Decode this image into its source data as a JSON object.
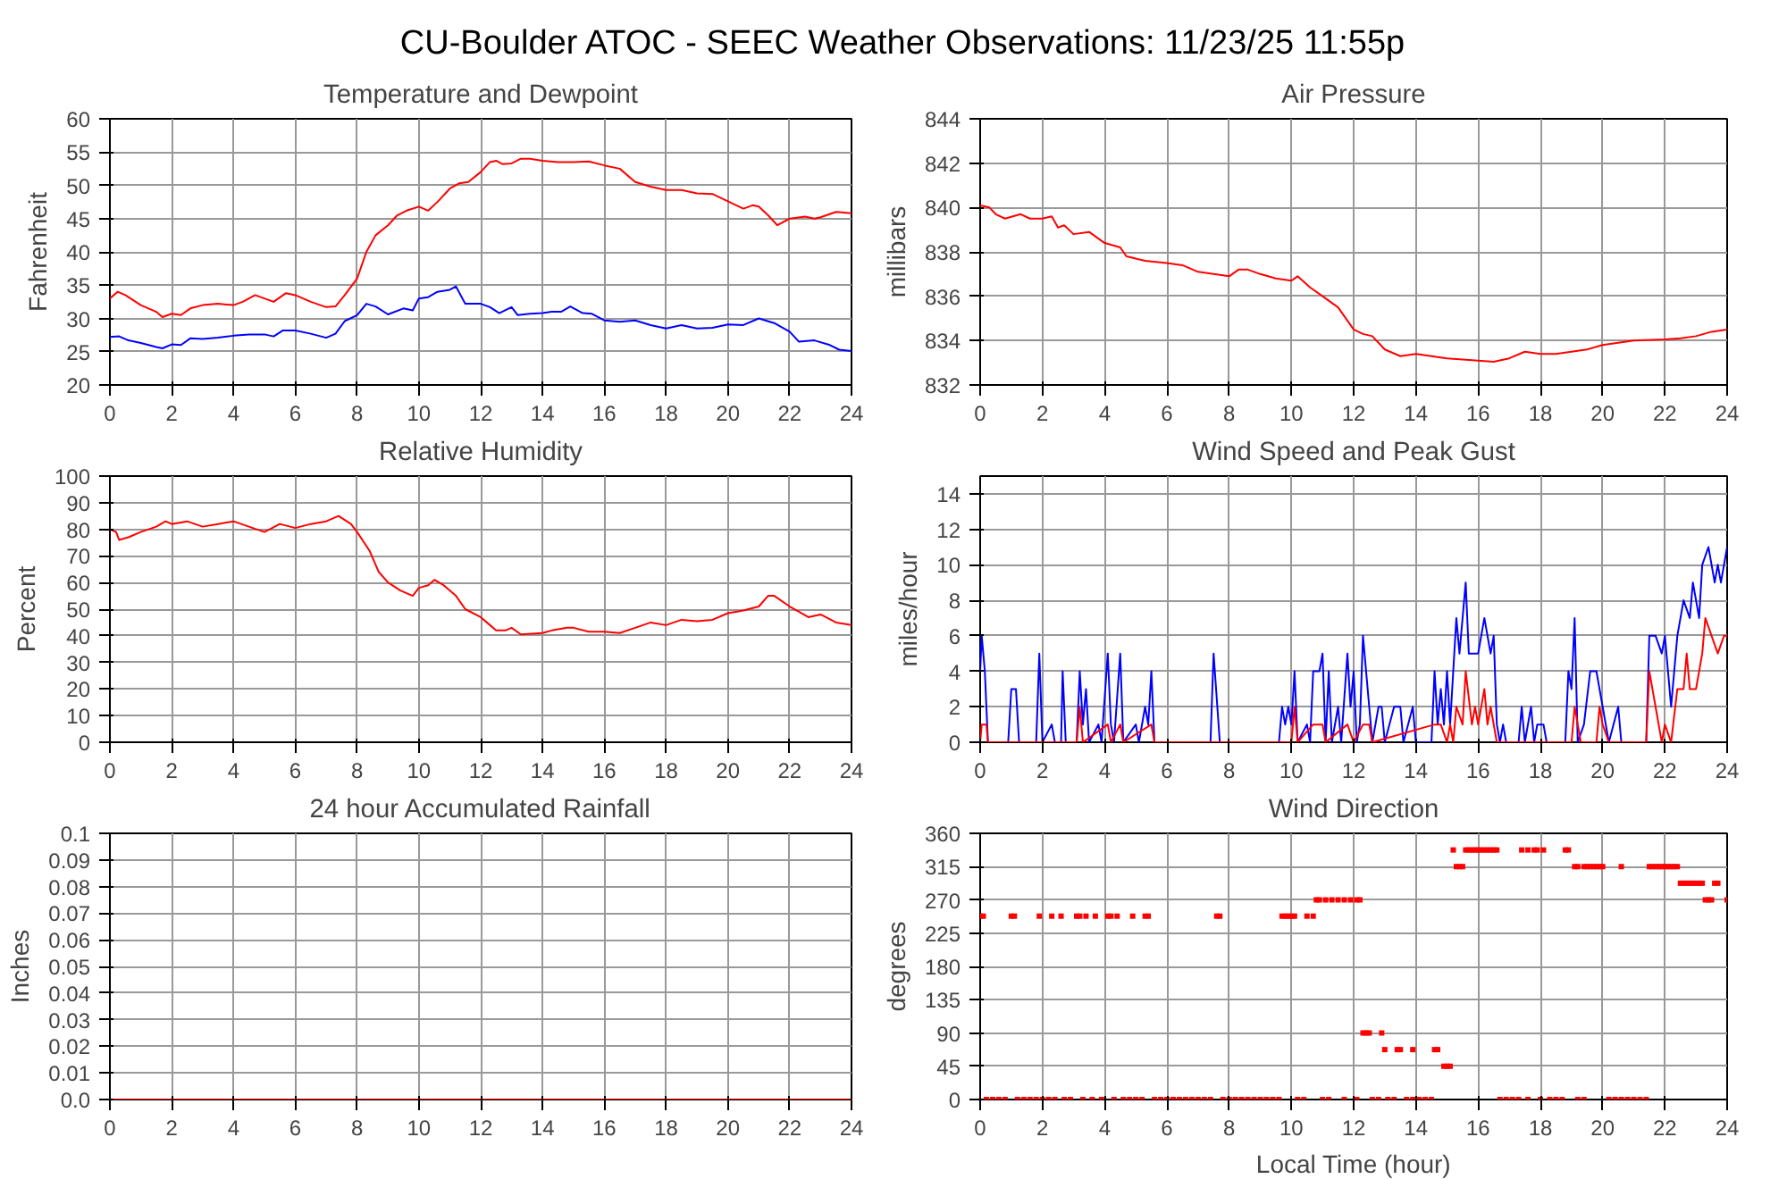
{
  "chart_data": [
    {
      "type": "line",
      "title": "Temperature and Dewpoint",
      "ylabel": "Fahrenheit",
      "annotations": [
        "CU-Boulder ATOC - SEEC Weather Observations: 11/23/25 11:55p"
      ],
      "xlim": [
        0,
        24
      ],
      "ylim": [
        20,
        60
      ],
      "xticks": [
        0,
        2,
        4,
        6,
        8,
        10,
        12,
        14,
        16,
        18,
        20,
        22,
        24
      ],
      "yticks": [
        20,
        25,
        30,
        35,
        40,
        45,
        50,
        55,
        60
      ],
      "grid": true,
      "line_style": "solid",
      "series": [
        {
          "color": "#ff0000",
          "x": [
            0,
            0.25,
            0.5,
            1,
            1.5,
            1.7,
            2,
            2.3,
            2.6,
            3,
            3.5,
            4,
            4.3,
            4.7,
            5,
            5.3,
            5.7,
            6,
            6.5,
            7,
            7.3,
            7.6,
            8,
            8.3,
            8.6,
            9,
            9.3,
            9.6,
            10,
            10.3,
            10.6,
            11,
            11.3,
            11.6,
            12,
            12.3,
            12.5,
            12.7,
            13,
            13.3,
            13.6,
            14,
            14.5,
            15,
            15.5,
            16,
            16.5,
            17,
            17.5,
            18,
            18.5,
            19,
            19.5,
            20,
            20.5,
            20.8,
            21,
            21.3,
            21.6,
            22,
            22.5,
            22.8,
            23,
            23.5,
            24
          ],
          "values": [
            33,
            34,
            33.5,
            32,
            31,
            30.2,
            30.7,
            30.5,
            31.5,
            32,
            32.2,
            32,
            32.5,
            33.5,
            33,
            32.5,
            33.8,
            33.5,
            32.5,
            31.7,
            31.8,
            33.5,
            36,
            40,
            42.5,
            44,
            45.5,
            46.2,
            46.8,
            46.2,
            47.5,
            49.5,
            50.3,
            50.5,
            52,
            53.5,
            53.7,
            53.2,
            53.3,
            54,
            54,
            53.7,
            53.5,
            53.5,
            53.6,
            53,
            52.5,
            50.5,
            49.8,
            49.3,
            49.3,
            48.8,
            48.7,
            47.6,
            46.5,
            47,
            46.8,
            45.5,
            44,
            45,
            45.3,
            45,
            45.2,
            46,
            45.8
          ]
        },
        {
          "color": "#0000ff",
          "x": [
            0,
            0.3,
            0.6,
            1,
            1.5,
            1.7,
            2,
            2.3,
            2.6,
            3,
            3.5,
            4,
            4.5,
            5,
            5.3,
            5.6,
            6,
            6.5,
            7,
            7.3,
            7.6,
            8,
            8.3,
            8.6,
            9,
            9.5,
            9.8,
            10,
            10.3,
            10.6,
            11,
            11.2,
            11.5,
            12,
            12.3,
            12.6,
            13,
            13.2,
            13.6,
            14,
            14.3,
            14.6,
            14.9,
            15.3,
            15.6,
            16,
            16.5,
            17,
            17.5,
            18,
            18.5,
            19,
            19.5,
            20,
            20.5,
            21,
            21.5,
            22,
            22.3,
            22.8,
            23.3,
            23.6,
            24
          ],
          "values": [
            27.2,
            27.3,
            26.7,
            26.3,
            25.7,
            25.5,
            26.1,
            26,
            27,
            26.9,
            27.1,
            27.4,
            27.6,
            27.6,
            27.3,
            28.2,
            28.2,
            27.7,
            27.1,
            27.7,
            29.6,
            30.5,
            32.2,
            31.8,
            30.6,
            31.5,
            31.2,
            33,
            33.2,
            34,
            34.3,
            34.8,
            32.2,
            32.2,
            31.7,
            30.8,
            31.7,
            30.5,
            30.7,
            30.8,
            31,
            31,
            31.8,
            30.8,
            30.7,
            29.7,
            29.5,
            29.7,
            29,
            28.5,
            29,
            28.5,
            28.6,
            29.1,
            29,
            30,
            29.3,
            28,
            26.5,
            26.7,
            26,
            25.3,
            25.1
          ]
        }
      ]
    },
    {
      "type": "line",
      "title": "Air Pressure",
      "ylabel": "millibars",
      "xlim": [
        0,
        24
      ],
      "ylim": [
        832,
        844
      ],
      "xticks": [
        0,
        2,
        4,
        6,
        8,
        10,
        12,
        14,
        16,
        18,
        20,
        22,
        24
      ],
      "yticks": [
        832,
        834,
        836,
        838,
        840,
        842,
        844
      ],
      "grid": true,
      "line_style": "solid",
      "series": [
        {
          "color": "#ff0000",
          "x": [
            0,
            0.3,
            0.5,
            0.8,
            1.3,
            1.6,
            2,
            2.3,
            2.5,
            2.7,
            3,
            3.5,
            4,
            4.5,
            4.7,
            5.3,
            6,
            6.5,
            7,
            7.5,
            8,
            8.3,
            8.6,
            9,
            9.5,
            10,
            10.2,
            10.6,
            11,
            11.5,
            12,
            12.3,
            12.6,
            13,
            13.5,
            14,
            14.5,
            15,
            15.5,
            16,
            16.5,
            17,
            17.5,
            18,
            18.5,
            19,
            19.5,
            20,
            20.5,
            21,
            22,
            22.5,
            23,
            23.5,
            24
          ],
          "values": [
            840.1,
            840,
            839.7,
            839.5,
            839.7,
            839.5,
            839.5,
            839.6,
            839.1,
            839.2,
            838.8,
            838.9,
            838.4,
            838.2,
            837.8,
            837.6,
            837.5,
            837.4,
            837.1,
            837,
            836.9,
            837.2,
            837.2,
            837,
            836.8,
            836.7,
            836.9,
            836.4,
            836,
            835.5,
            834.5,
            834.3,
            834.2,
            833.6,
            833.3,
            833.4,
            833.3,
            833.2,
            833.15,
            833.1,
            833.05,
            833.2,
            833.5,
            833.4,
            833.4,
            833.5,
            833.6,
            833.8,
            833.9,
            834,
            834.05,
            834.1,
            834.2,
            834.4,
            834.5
          ]
        }
      ]
    },
    {
      "type": "line",
      "title": "Relative Humidity",
      "ylabel": "Percent",
      "xlim": [
        0,
        24
      ],
      "ylim": [
        0,
        100
      ],
      "xticks": [
        0,
        2,
        4,
        6,
        8,
        10,
        12,
        14,
        16,
        18,
        20,
        22,
        24
      ],
      "yticks": [
        0,
        10,
        20,
        30,
        40,
        50,
        60,
        70,
        80,
        90,
        100
      ],
      "grid": true,
      "line_style": "solid",
      "series": [
        {
          "color": "#ff0000",
          "x": [
            0,
            0.2,
            0.3,
            0.6,
            1,
            1.5,
            1.8,
            2,
            2.5,
            3,
            3.5,
            4,
            4.5,
            5,
            5.5,
            6,
            6.5,
            7,
            7.4,
            7.8,
            8,
            8.4,
            8.7,
            9,
            9.4,
            9.8,
            10,
            10.3,
            10.5,
            10.8,
            11.2,
            11.5,
            12,
            12.3,
            12.5,
            12.8,
            13,
            13.3,
            14,
            14.3,
            14.8,
            15,
            15.5,
            16,
            16.5,
            17,
            17.5,
            18,
            18.5,
            19,
            19.5,
            20,
            20.5,
            21,
            21.3,
            21.5,
            22,
            22.3,
            22.6,
            23,
            23.5,
            24
          ],
          "values": [
            80,
            79,
            76,
            77,
            79,
            81,
            83,
            82,
            83,
            81,
            82,
            83,
            81,
            79,
            82,
            80.5,
            82,
            83,
            85,
            82,
            79,
            72,
            64,
            60,
            57,
            55,
            58,
            59,
            61,
            59,
            55,
            50,
            47,
            44,
            42,
            42,
            43,
            40.5,
            41,
            42,
            43,
            43,
            41.5,
            41.5,
            41,
            43,
            45,
            44,
            46,
            45.5,
            46,
            48.5,
            49.5,
            51,
            55,
            55,
            51,
            49,
            47,
            48,
            45,
            44
          ]
        }
      ]
    },
    {
      "type": "line",
      "title": "Wind Speed and Peak Gust",
      "ylabel": "miles/hour",
      "xlim": [
        0,
        24
      ],
      "ylim": [
        0,
        15
      ],
      "xticks": [
        0,
        2,
        4,
        6,
        8,
        10,
        12,
        14,
        16,
        18,
        20,
        22,
        24
      ],
      "yticks": [
        0,
        2,
        4,
        6,
        8,
        10,
        12,
        14
      ],
      "grid": true,
      "line_style": "solid",
      "series": [
        {
          "color": "#0000ff",
          "x": [
            0,
            0.05,
            0.15,
            0.25,
            0.9,
            1,
            1.15,
            1.25,
            1.8,
            1.9,
            2,
            2.3,
            2.4,
            2.6,
            2.65,
            2.75,
            3.1,
            3.2,
            3.3,
            3.4,
            3.5,
            3.8,
            3.9,
            4.1,
            4.2,
            4.3,
            4.5,
            4.6,
            5,
            5.1,
            5.3,
            5.4,
            5.5,
            5.6,
            7.4,
            7.5,
            7.7,
            9.6,
            9.7,
            9.8,
            9.9,
            10,
            10.1,
            10.2,
            10.5,
            10.6,
            10.7,
            10.9,
            11,
            11.1,
            11.2,
            11.3,
            11.5,
            11.6,
            11.8,
            11.9,
            12,
            12.1,
            12.2,
            12.3,
            12.5,
            12.6,
            12.8,
            12.9,
            13,
            13.3,
            13.5,
            13.6,
            13.9,
            14,
            14.5,
            14.6,
            14.7,
            14.8,
            14.9,
            15,
            15.1,
            15.3,
            15.4,
            15.6,
            15.7,
            15.9,
            16,
            16.2,
            16.4,
            16.5,
            16.6,
            16.7,
            16.8,
            16.9,
            17.3,
            17.4,
            17.5,
            17.7,
            17.8,
            17.9,
            18.1,
            18.2,
            18.8,
            18.9,
            19,
            19.1,
            19.2,
            19.4,
            19.6,
            19.8,
            20,
            20.2,
            20.5,
            20.6,
            21.4,
            21.5,
            21.7,
            21.9,
            22,
            22.2,
            22.4,
            22.6,
            22.8,
            22.9,
            23.1,
            23.2,
            23.4,
            23.5,
            23.6,
            23.7,
            23.8,
            24
          ],
          "values": [
            4,
            6,
            4,
            0,
            0,
            3,
            3,
            0,
            0,
            5,
            0,
            1,
            0,
            0,
            4,
            0,
            0,
            4,
            1,
            3,
            0,
            1,
            0,
            5,
            1,
            0,
            5,
            0,
            1,
            0,
            2,
            1,
            4,
            0,
            0,
            5,
            0,
            0,
            2,
            1,
            2,
            1,
            4,
            0,
            1,
            0,
            4,
            4,
            5,
            0,
            4,
            0,
            2,
            0,
            5,
            2,
            4,
            0,
            1,
            6,
            2,
            0,
            2,
            2,
            0,
            2,
            2,
            0,
            2,
            0,
            0,
            4,
            1,
            3,
            1,
            4,
            1,
            7,
            5,
            9,
            5,
            5,
            5,
            7,
            5,
            6,
            1,
            0,
            1,
            0,
            0,
            2,
            0,
            2,
            0,
            1,
            1,
            0,
            0,
            4,
            3,
            7,
            0,
            1,
            4,
            4,
            2,
            0,
            2,
            0,
            0,
            6,
            6,
            5,
            6,
            2,
            6,
            8,
            7,
            9,
            7,
            10,
            11,
            10,
            9,
            10,
            9,
            11
          ]
        },
        {
          "color": "#ff0000",
          "x": [
            0,
            0.05,
            0.2,
            0.25,
            3.1,
            3.2,
            3.3,
            4.1,
            4.2,
            4.5,
            4.6,
            5.5,
            5.6,
            10,
            10.1,
            10.2,
            10.7,
            11,
            11.1,
            11.8,
            12,
            12.3,
            12.5,
            12.6,
            14.6,
            14.8,
            15,
            15.1,
            15.2,
            15.3,
            15.5,
            15.6,
            15.8,
            15.9,
            16,
            16.2,
            16.3,
            16.4,
            16.6,
            19,
            19.1,
            19.3,
            19.8,
            19.9,
            20,
            20.2,
            21.4,
            21.5,
            21.7,
            21.8,
            21.9,
            22,
            22.2,
            22.4,
            22.6,
            22.7,
            22.8,
            23,
            23.2,
            23.3,
            23.5,
            23.7,
            23.9,
            24
          ],
          "values": [
            0,
            1,
            1,
            0,
            0,
            2,
            0,
            1,
            0,
            1,
            0,
            1,
            0,
            0,
            2,
            0,
            1,
            1,
            0,
            1,
            0,
            1,
            1,
            0,
            1,
            1,
            0,
            1,
            0,
            2,
            1,
            4,
            1,
            2,
            1,
            3,
            1,
            2,
            0,
            0,
            2,
            0,
            0,
            2,
            1,
            0,
            0,
            4,
            2,
            1,
            0,
            1,
            0,
            3,
            3,
            5,
            3,
            3,
            5,
            7,
            6,
            5,
            6,
            6
          ]
        }
      ]
    },
    {
      "type": "line",
      "title": "24 hour Accumulated Rainfall",
      "ylabel": "Inches",
      "xlim": [
        0,
        24
      ],
      "ylim": [
        0,
        0.1
      ],
      "xticks": [
        0,
        2,
        4,
        6,
        8,
        10,
        12,
        14,
        16,
        18,
        20,
        22,
        24
      ],
      "yticks": [
        {
          "value": 0,
          "label": "0.0"
        },
        0.01,
        0.02,
        0.03,
        0.04,
        0.05,
        0.06,
        0.07,
        0.08,
        0.09,
        0.1
      ],
      "grid": true,
      "line_style": "solid",
      "series": [
        {
          "color": "#ff0000",
          "x": [
            0,
            24
          ],
          "values": [
            0,
            0
          ]
        }
      ]
    },
    {
      "type": "scatter",
      "title": "Wind Direction",
      "xlabel": "Local Time (hour)",
      "ylabel": "degrees",
      "xlim": [
        0,
        24
      ],
      "ylim": [
        0,
        360
      ],
      "xticks": [
        0,
        2,
        4,
        6,
        8,
        10,
        12,
        14,
        16,
        18,
        20,
        22,
        24
      ],
      "yticks": [
        0,
        45,
        90,
        135,
        180,
        225,
        270,
        315,
        360
      ],
      "grid": true,
      "marker": "square",
      "series": [
        {
          "color": "#ff0000",
          "x": [
            0,
            0.1,
            1.0,
            1.1,
            1.9,
            2.3,
            2.6,
            3.1,
            3.2,
            3.4,
            3.7,
            4.1,
            4.2,
            4.4,
            4.9,
            5.3,
            5.4,
            7.6,
            7.7,
            9.7,
            9.8,
            9.9,
            10.0,
            10.1,
            10.5,
            10.7,
            0.2,
            0.4,
            0.6,
            0.8,
            1.2,
            1.4,
            1.6,
            1.8,
            2.0,
            2.2,
            2.4,
            2.7,
            2.9,
            3.3,
            3.6,
            3.9,
            4.3,
            4.6,
            4.8,
            5.0,
            5.2,
            5.6,
            5.8,
            6.0,
            6.2,
            6.4,
            6.6,
            6.8,
            7.0,
            7.2,
            7.4,
            7.8,
            8.0,
            8.2,
            8.4,
            8.6,
            8.8,
            9.0,
            9.2,
            9.4,
            9.6,
            10.2,
            10.4,
            11.0,
            11.2,
            11.7,
            12.1,
            12.6,
            12.8,
            13.1,
            13.3,
            13.7,
            13.9,
            14.1,
            14.3,
            14.5,
            16.7,
            16.9,
            17.1,
            17.3,
            17.6,
            18.0,
            18.3,
            18.5,
            18.7,
            19.2,
            19.4,
            20.2,
            20.4,
            20.6,
            20.8,
            21.0,
            21.2,
            21.4,
            10.8,
            10.9,
            11.1,
            11.3,
            11.5,
            11.7,
            11.9,
            12.1,
            12.2,
            12.3,
            12.4,
            12.5,
            12.9,
            13.0,
            13.4,
            13.5,
            13.9,
            14.6,
            14.7,
            14.9,
            15.0,
            15.1,
            15.2,
            15.6,
            15.7,
            15.8,
            15.9,
            16.0,
            16.1,
            16.2,
            16.3,
            16.4,
            16.5,
            16.6,
            17.4,
            17.6,
            17.8,
            17.9,
            18.1,
            18.8,
            18.9,
            15.3,
            15.4,
            15.5,
            19.1,
            19.2,
            19.4,
            19.5,
            19.6,
            19.7,
            19.8,
            19.9,
            20.0,
            20.6,
            21.5,
            21.6,
            21.7,
            21.8,
            21.9,
            22.0,
            22.1,
            22.2,
            22.3,
            22.4,
            22.5,
            22.6,
            22.7,
            22.8,
            22.9,
            23.0,
            23.1,
            23.2,
            23.6,
            23.7,
            23.3,
            23.4,
            23.5,
            24.0
          ],
          "values": [
            248,
            248,
            248,
            248,
            248,
            248,
            248,
            248,
            248,
            248,
            248,
            248,
            248,
            248,
            248,
            248,
            248,
            248,
            248,
            248,
            248,
            248,
            248,
            248,
            248,
            248,
            0,
            0,
            0,
            0,
            0,
            0,
            0,
            0,
            0,
            0,
            0,
            0,
            0,
            0,
            0,
            0,
            0,
            0,
            0,
            0,
            0,
            0,
            0,
            0,
            0,
            0,
            0,
            0,
            0,
            0,
            0,
            0,
            0,
            0,
            0,
            0,
            0,
            0,
            0,
            0,
            0,
            0,
            0,
            0,
            0,
            0,
            0,
            0,
            0,
            0,
            0,
            0,
            0,
            0,
            0,
            0,
            0,
            0,
            0,
            0,
            0,
            0,
            0,
            0,
            0,
            0,
            0,
            0,
            0,
            0,
            0,
            0,
            0,
            0,
            270,
            270,
            270,
            270,
            270,
            270,
            270,
            270,
            270,
            90,
            90,
            90,
            90,
            67.5,
            67.5,
            67.5,
            67.5,
            67.5,
            67.5,
            45,
            45,
            45,
            337.5,
            337.5,
            337.5,
            337.5,
            337.5,
            337.5,
            337.5,
            337.5,
            337.5,
            337.5,
            337.5,
            337.5,
            337.5,
            337.5,
            337.5,
            337.5,
            337.5,
            337.5,
            337.5,
            315,
            315,
            315,
            315,
            315,
            315,
            315,
            315,
            315,
            315,
            315,
            315,
            315,
            315,
            315,
            315,
            315,
            315,
            315,
            315,
            315,
            315,
            315,
            292.5,
            292.5,
            292.5,
            292.5,
            292.5,
            292.5,
            292.5,
            292.5,
            292.5,
            292.5,
            270,
            270,
            270,
            270
          ]
        }
      ]
    }
  ]
}
